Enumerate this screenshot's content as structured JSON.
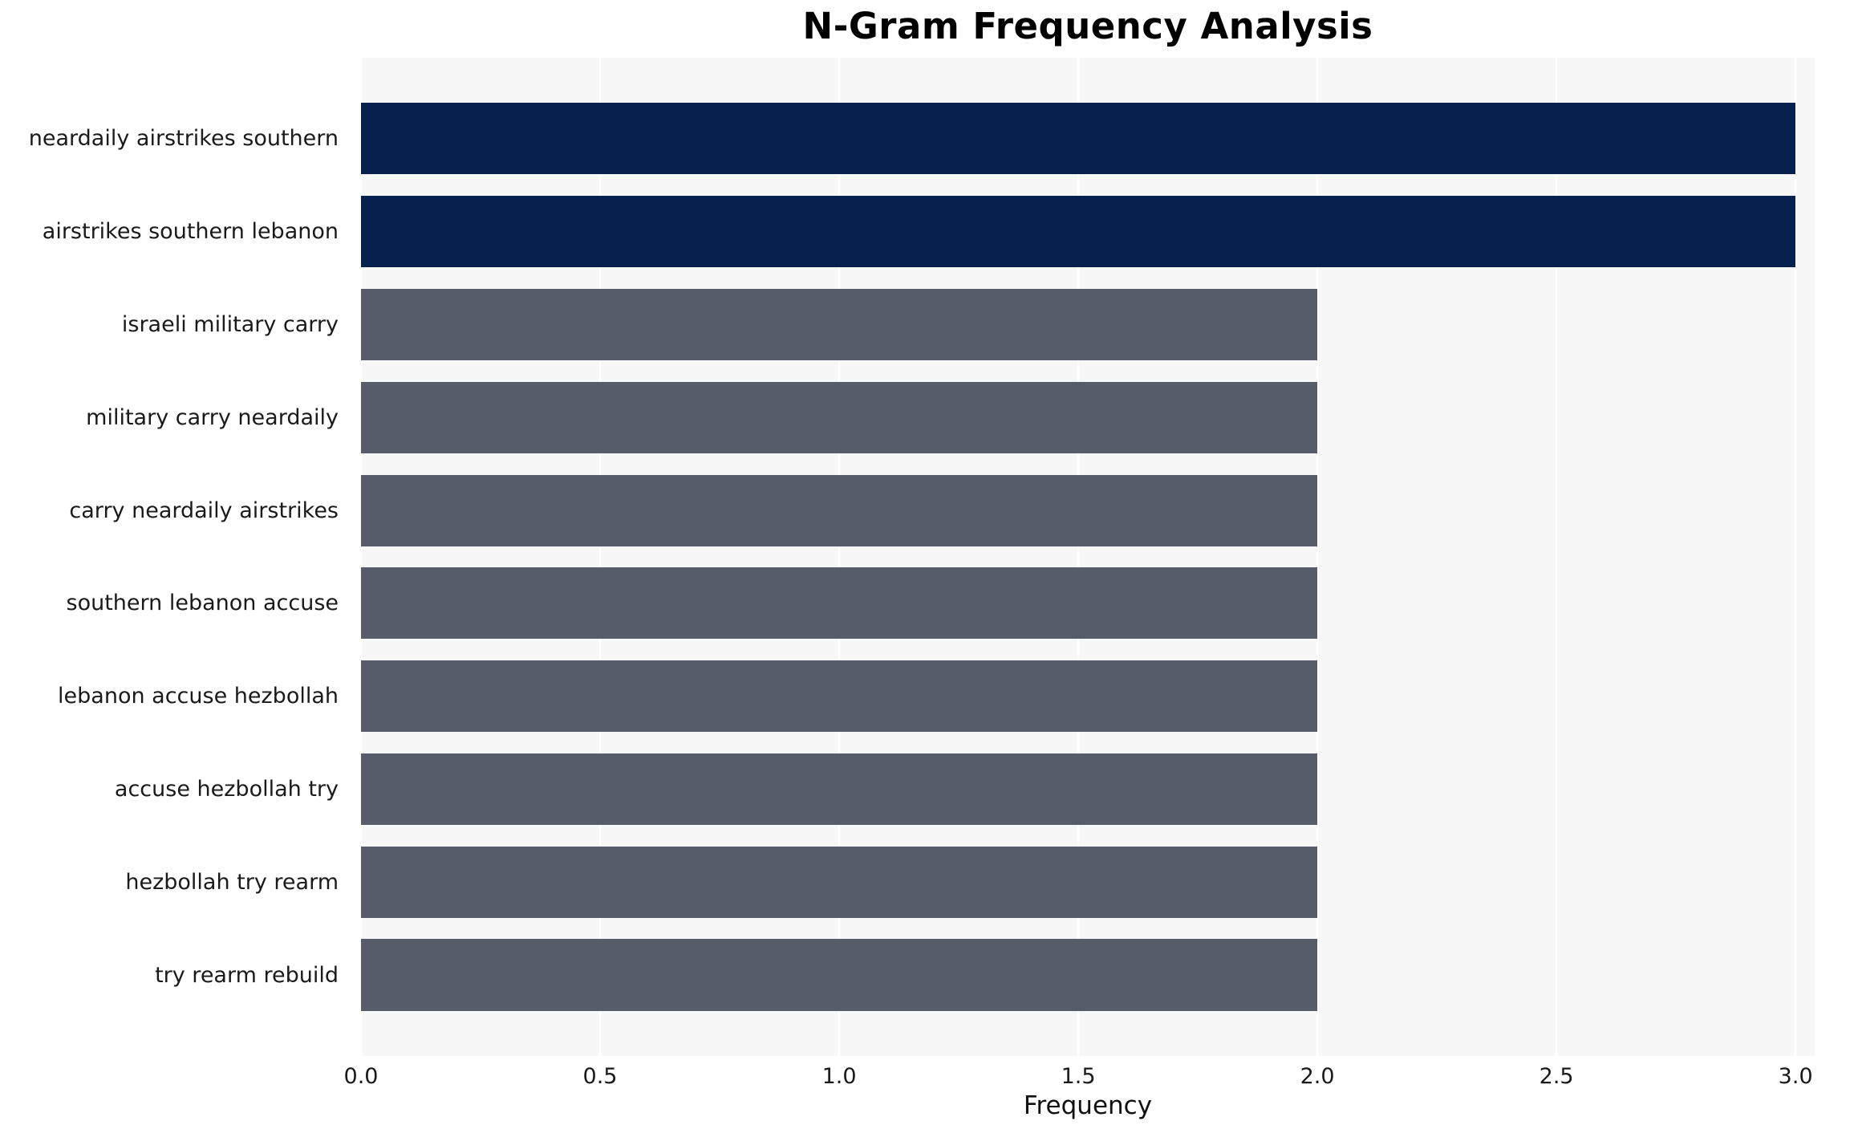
{
  "chart_data": {
    "type": "bar",
    "orientation": "horizontal",
    "title": "N-Gram Frequency Analysis",
    "xlabel": "Frequency",
    "ylabel": "",
    "categories": [
      "neardaily airstrikes southern",
      "airstrikes southern lebanon",
      "israeli military carry",
      "military carry neardaily",
      "carry neardaily airstrikes",
      "southern lebanon accuse",
      "lebanon accuse hezbollah",
      "accuse hezbollah try",
      "hezbollah try rearm",
      "try rearm rebuild"
    ],
    "values": [
      3,
      3,
      2,
      2,
      2,
      2,
      2,
      2,
      2,
      2
    ],
    "bar_colors": [
      "#06214e",
      "#06214e",
      "#575c6b",
      "#575c6b",
      "#575c6b",
      "#575c6b",
      "#575c6b",
      "#575c6b",
      "#575c6b",
      "#575c6b"
    ],
    "colors": {
      "high_frequency": "#06214e",
      "normal_frequency": "#575c6b",
      "plot_background": "#f7f7f7",
      "grid": "#ffffff"
    },
    "xlim": [
      0,
      3.04
    ],
    "xticks": [
      0,
      0.5,
      1,
      1.5,
      2,
      2.5,
      3
    ],
    "xtick_labels": [
      "0.0",
      "0.5",
      "1.0",
      "1.5",
      "2.0",
      "2.5",
      "3.0"
    ],
    "grid": true,
    "legend": "none"
  }
}
